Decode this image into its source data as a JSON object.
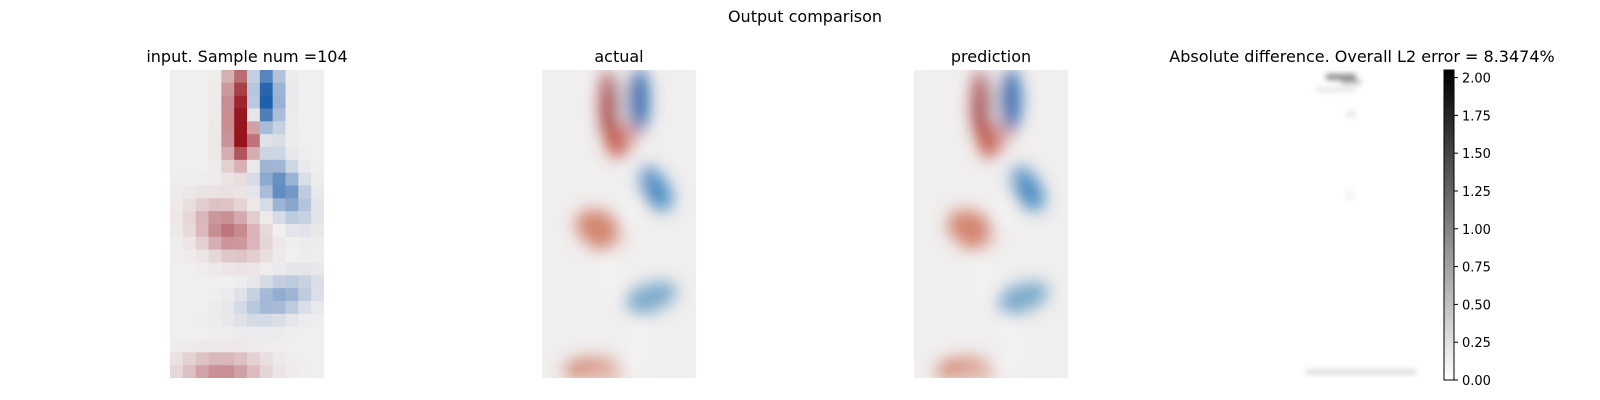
{
  "figure": {
    "suptitle": "Output comparison"
  },
  "chart_data": [
    {
      "type": "heatmap",
      "title": "input. Sample num =104",
      "panel": "input",
      "colormap": "diverging red-white-blue",
      "colors": {
        "positive": "#b2182b",
        "negative": "#2166ac",
        "neutral": "#f0eeee"
      },
      "pixelated": true,
      "grid_cols": 12,
      "grid_rows": 24,
      "axis": "off"
    },
    {
      "type": "heatmap",
      "title": "actual",
      "panel": "actual",
      "colormap": "diverging red-white-blue",
      "colors": {
        "positive": "#b2182b",
        "negative": "#2166ac",
        "neutral": "#f0eeee"
      },
      "pixelated": false,
      "axis": "off"
    },
    {
      "type": "heatmap",
      "title": "prediction",
      "panel": "prediction",
      "colormap": "diverging red-white-blue",
      "colors": {
        "positive": "#b2182b",
        "negative": "#2166ac",
        "neutral": "#f0eeee"
      },
      "pixelated": false,
      "axis": "off"
    },
    {
      "type": "heatmap",
      "title": "Absolute difference. Overall L2 error = 8.3474%",
      "panel": "difference",
      "colormap": "grayscale (white = 0, black = max)",
      "axis": "off",
      "colorbar": {
        "min": 0.0,
        "max": 2.05,
        "ticks": [
          0.0,
          0.25,
          0.5,
          0.75,
          1.0,
          1.25,
          1.5,
          1.75,
          2.0
        ],
        "tick_labels": [
          "0.00",
          "0.25",
          "0.50",
          "0.75",
          "1.00",
          "1.25",
          "1.50",
          "1.75",
          "2.00"
        ]
      }
    }
  ]
}
